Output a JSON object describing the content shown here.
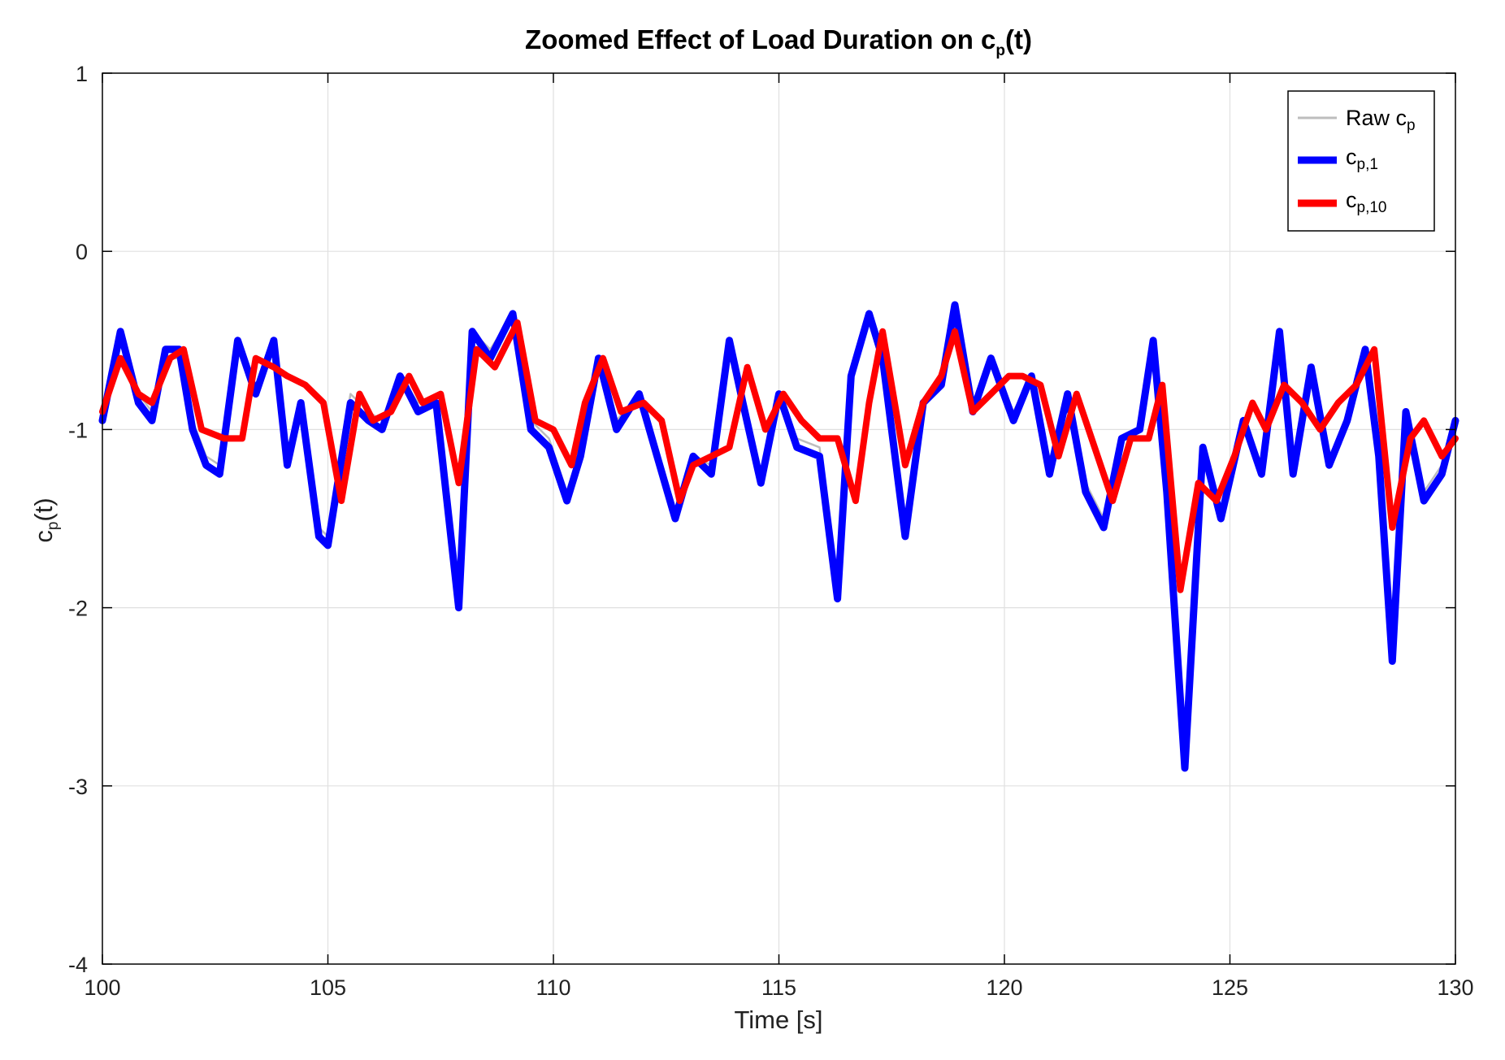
{
  "chart_data": {
    "type": "line",
    "title": "Zoomed Effect of Load Duration on c",
    "title_sub": "p",
    "title_suffix": "(t)",
    "xlabel": "Time [s]",
    "ylabel": "c",
    "ylabel_sub": "p",
    "ylabel_suffix": "(t)",
    "xlim": [
      100,
      130
    ],
    "ylim": [
      -4,
      1
    ],
    "xticks": [
      100,
      105,
      110,
      115,
      120,
      125,
      130
    ],
    "yticks": [
      -4,
      -3,
      -2,
      -1,
      0,
      1
    ],
    "grid": true,
    "legend_position": "top-right",
    "colors": {
      "raw": "#bdbdbd",
      "cp1": "#0000ff",
      "cp10": "#ff0000",
      "grid": "#e0e0e0",
      "axis": "#000000"
    },
    "series": [
      {
        "name": "Raw c",
        "name_sub": "p",
        "color": "#bdbdbd",
        "x": [
          100.0,
          100.4,
          100.8,
          101.1,
          101.4,
          101.7,
          102.0,
          102.3,
          102.6,
          103.0,
          103.4,
          103.8,
          104.1,
          104.4,
          104.8,
          105.0,
          105.5,
          105.9,
          106.2,
          106.6,
          107.0,
          107.4,
          107.9,
          108.2,
          108.6,
          109.1,
          109.5,
          109.9,
          110.3,
          110.6,
          111.0,
          111.4,
          111.9,
          112.3,
          112.7,
          113.1,
          113.5,
          113.9,
          114.2,
          114.6,
          115.0,
          115.4,
          115.9,
          116.3,
          116.6,
          117.0,
          117.3,
          117.8,
          118.2,
          118.6,
          118.9,
          119.3,
          119.7,
          120.2,
          120.6,
          121.0,
          121.4,
          121.8,
          122.2,
          122.6,
          123.0,
          123.3,
          123.6,
          124.0,
          124.4,
          124.8,
          125.3,
          125.7,
          126.1,
          126.4,
          126.8,
          127.2,
          127.6,
          128.0,
          128.3,
          128.6,
          128.9,
          129.3,
          129.7,
          130.0
        ],
        "y": [
          -0.9,
          -0.5,
          -0.8,
          -0.9,
          -0.6,
          -0.6,
          -0.95,
          -1.15,
          -1.2,
          -0.55,
          -0.75,
          -0.55,
          -1.15,
          -0.85,
          -1.55,
          -1.6,
          -0.8,
          -0.9,
          -0.95,
          -0.7,
          -0.85,
          -0.8,
          -1.95,
          -0.45,
          -0.55,
          -0.35,
          -0.95,
          -1.05,
          -1.35,
          -1.1,
          -0.6,
          -0.95,
          -0.8,
          -1.1,
          -1.45,
          -1.15,
          -1.2,
          -0.55,
          -0.85,
          -1.25,
          -0.8,
          -1.05,
          -1.1,
          -1.9,
          -0.7,
          -0.35,
          -0.6,
          -1.55,
          -0.85,
          -0.75,
          -0.3,
          -0.85,
          -0.6,
          -0.9,
          -0.7,
          -1.2,
          -0.8,
          -1.3,
          -1.5,
          -1.05,
          -1.0,
          -0.5,
          -1.3,
          -2.85,
          -1.1,
          -1.45,
          -0.95,
          -1.2,
          -0.5,
          -1.2,
          -0.65,
          -1.15,
          -0.95,
          -0.6,
          -1.1,
          -2.25,
          -0.9,
          -1.35,
          -1.2,
          -0.95
        ]
      },
      {
        "name": "c",
        "name_sub": "p,1",
        "color": "#0000ff",
        "x": [
          100.0,
          100.4,
          100.8,
          101.1,
          101.4,
          101.7,
          102.0,
          102.3,
          102.6,
          103.0,
          103.4,
          103.8,
          104.1,
          104.4,
          104.8,
          105.0,
          105.5,
          105.9,
          106.2,
          106.6,
          107.0,
          107.4,
          107.9,
          108.2,
          108.6,
          109.1,
          109.5,
          109.9,
          110.3,
          110.6,
          111.0,
          111.4,
          111.9,
          112.3,
          112.7,
          113.1,
          113.5,
          113.9,
          114.2,
          114.6,
          115.0,
          115.4,
          115.9,
          116.3,
          116.6,
          117.0,
          117.3,
          117.8,
          118.2,
          118.6,
          118.9,
          119.3,
          119.7,
          120.2,
          120.6,
          121.0,
          121.4,
          121.8,
          122.2,
          122.6,
          123.0,
          123.3,
          123.6,
          124.0,
          124.4,
          124.8,
          125.3,
          125.7,
          126.1,
          126.4,
          126.8,
          127.2,
          127.6,
          128.0,
          128.3,
          128.6,
          128.9,
          129.3,
          129.7,
          130.0
        ],
        "y": [
          -0.95,
          -0.45,
          -0.85,
          -0.95,
          -0.55,
          -0.55,
          -1.0,
          -1.2,
          -1.25,
          -0.5,
          -0.8,
          -0.5,
          -1.2,
          -0.85,
          -1.6,
          -1.65,
          -0.85,
          -0.95,
          -1.0,
          -0.7,
          -0.9,
          -0.85,
          -2.0,
          -0.45,
          -0.6,
          -0.35,
          -1.0,
          -1.1,
          -1.4,
          -1.15,
          -0.6,
          -1.0,
          -0.8,
          -1.15,
          -1.5,
          -1.15,
          -1.25,
          -0.5,
          -0.85,
          -1.3,
          -0.8,
          -1.1,
          -1.15,
          -1.95,
          -0.7,
          -0.35,
          -0.6,
          -1.6,
          -0.85,
          -0.75,
          -0.3,
          -0.9,
          -0.6,
          -0.95,
          -0.7,
          -1.25,
          -0.8,
          -1.35,
          -1.55,
          -1.05,
          -1.0,
          -0.5,
          -1.35,
          -2.9,
          -1.1,
          -1.5,
          -0.95,
          -1.25,
          -0.45,
          -1.25,
          -0.65,
          -1.2,
          -0.95,
          -0.55,
          -1.15,
          -2.3,
          -0.9,
          -1.4,
          -1.25,
          -0.95
        ]
      },
      {
        "name": "c",
        "name_sub": "p,10",
        "color": "#ff0000",
        "x": [
          100.0,
          100.4,
          100.8,
          101.1,
          101.5,
          101.8,
          102.2,
          102.7,
          103.1,
          103.4,
          103.8,
          104.1,
          104.5,
          104.9,
          105.3,
          105.7,
          106.0,
          106.4,
          106.8,
          107.1,
          107.5,
          107.9,
          108.3,
          108.7,
          109.2,
          109.6,
          110.0,
          110.4,
          110.7,
          111.1,
          111.5,
          112.0,
          112.4,
          112.8,
          113.1,
          113.5,
          113.9,
          114.3,
          114.7,
          115.1,
          115.5,
          115.9,
          116.3,
          116.7,
          117.0,
          117.3,
          117.8,
          118.2,
          118.6,
          118.9,
          119.3,
          119.7,
          120.1,
          120.4,
          120.8,
          121.2,
          121.6,
          122.0,
          122.4,
          122.8,
          123.2,
          123.5,
          123.9,
          124.3,
          124.7,
          125.1,
          125.5,
          125.8,
          126.2,
          126.6,
          127.0,
          127.4,
          127.8,
          128.2,
          128.6,
          129.0,
          129.3,
          129.7,
          130.0
        ],
        "y": [
          -0.9,
          -0.6,
          -0.8,
          -0.85,
          -0.6,
          -0.55,
          -1.0,
          -1.05,
          -1.05,
          -0.6,
          -0.65,
          -0.7,
          -0.75,
          -0.85,
          -1.4,
          -0.8,
          -0.95,
          -0.9,
          -0.7,
          -0.85,
          -0.8,
          -1.3,
          -0.55,
          -0.65,
          -0.4,
          -0.95,
          -1.0,
          -1.2,
          -0.85,
          -0.6,
          -0.9,
          -0.85,
          -0.95,
          -1.4,
          -1.2,
          -1.15,
          -1.1,
          -0.65,
          -1.0,
          -0.8,
          -0.95,
          -1.05,
          -1.05,
          -1.4,
          -0.85,
          -0.45,
          -1.2,
          -0.85,
          -0.7,
          -0.45,
          -0.9,
          -0.8,
          -0.7,
          -0.7,
          -0.75,
          -1.15,
          -0.8,
          -1.1,
          -1.4,
          -1.05,
          -1.05,
          -0.75,
          -1.9,
          -1.3,
          -1.4,
          -1.15,
          -0.85,
          -1.0,
          -0.75,
          -0.85,
          -1.0,
          -0.85,
          -0.75,
          -0.55,
          -1.55,
          -1.05,
          -0.95,
          -1.15,
          -1.05
        ]
      }
    ]
  }
}
